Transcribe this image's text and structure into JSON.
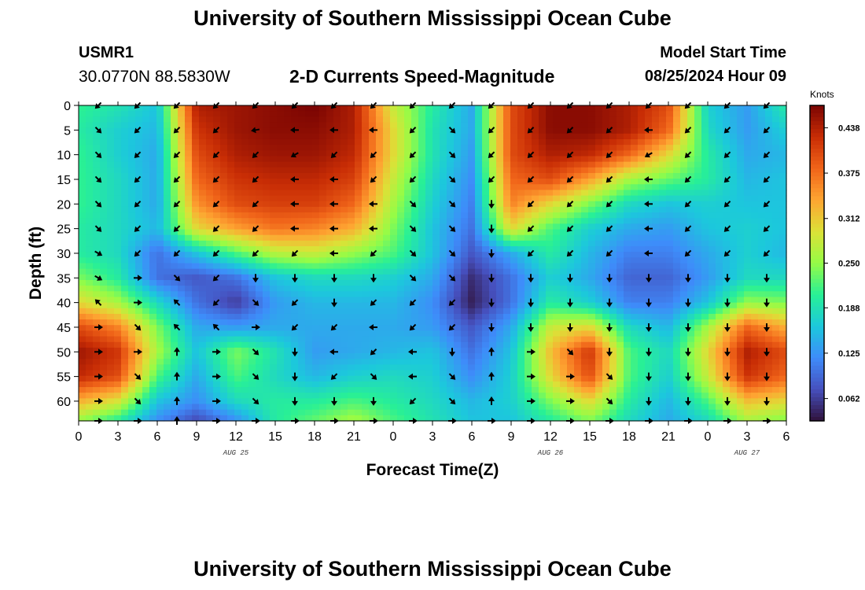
{
  "header": {
    "title": "University of Southern Mississippi Ocean Cube",
    "station": "USMR1",
    "coords": "30.0770N  88.5830W",
    "plot_title": "2-D Currents Speed-Magnitude",
    "model_label": "Model Start Time",
    "model_time": "08/25/2024 Hour 09"
  },
  "footer": {
    "title": "University of Southern Mississippi Ocean Cube"
  },
  "colors": {
    "background": "#ffffff",
    "axis": "#000000",
    "arrow": "#000000"
  },
  "chart_data": {
    "type": "heatmap",
    "title": "2-D Currents Speed-Magnitude",
    "xlabel": "Forecast Time(Z)",
    "ylabel": "Depth (ft)",
    "xlim": [
      0,
      54
    ],
    "ylim": [
      0,
      64
    ],
    "x_ticks": [
      0,
      3,
      6,
      9,
      12,
      15,
      18,
      21,
      24,
      27,
      30,
      33,
      36,
      39,
      42,
      45,
      48,
      51,
      54
    ],
    "x_tick_labels": [
      "0",
      "3",
      "6",
      "9",
      "12",
      "15",
      "18",
      "21",
      "0",
      "3",
      "6",
      "9",
      "12",
      "15",
      "18",
      "21",
      "0",
      "3",
      "6"
    ],
    "y_ticks": [
      0,
      5,
      10,
      15,
      20,
      25,
      30,
      35,
      40,
      45,
      50,
      55,
      60
    ],
    "y_tick_labels": [
      "0",
      "5",
      "10",
      "15",
      "20",
      "25",
      "30",
      "35",
      "40",
      "45",
      "50",
      "55",
      "60"
    ],
    "date_labels": [
      {
        "x": 12,
        "label": "AUG 25"
      },
      {
        "x": 36,
        "label": "AUG 26"
      },
      {
        "x": 51,
        "label": "AUG 27"
      }
    ],
    "colorbar": {
      "label": "Knots",
      "min": 0.031,
      "max": 0.469,
      "ticks": [
        0.062,
        0.125,
        0.188,
        0.25,
        0.312,
        0.375,
        0.438
      ],
      "tick_labels": [
        "0.062",
        "0.125",
        "0.188",
        "0.250",
        "0.312",
        "0.375",
        "0.438"
      ]
    },
    "speed_field": {
      "x": [
        0,
        3,
        6,
        9,
        12,
        15,
        18,
        21,
        24,
        27,
        30,
        33,
        36,
        39,
        42,
        45,
        48,
        51,
        54
      ],
      "depth": [
        0,
        5,
        10,
        15,
        20,
        25,
        30,
        35,
        40,
        45,
        50,
        55,
        60,
        64
      ],
      "values": [
        [
          0.21,
          0.19,
          0.16,
          0.44,
          0.45,
          0.46,
          0.47,
          0.44,
          0.28,
          0.2,
          0.14,
          0.4,
          0.46,
          0.46,
          0.44,
          0.4,
          0.17,
          0.13,
          0.2
        ],
        [
          0.2,
          0.17,
          0.15,
          0.42,
          0.45,
          0.46,
          0.46,
          0.44,
          0.3,
          0.19,
          0.14,
          0.4,
          0.46,
          0.46,
          0.44,
          0.38,
          0.18,
          0.13,
          0.17
        ],
        [
          0.21,
          0.17,
          0.14,
          0.4,
          0.44,
          0.45,
          0.45,
          0.43,
          0.3,
          0.19,
          0.13,
          0.4,
          0.44,
          0.43,
          0.38,
          0.3,
          0.2,
          0.14,
          0.15
        ],
        [
          0.21,
          0.18,
          0.14,
          0.38,
          0.42,
          0.43,
          0.43,
          0.41,
          0.28,
          0.18,
          0.12,
          0.38,
          0.4,
          0.34,
          0.26,
          0.23,
          0.2,
          0.15,
          0.16
        ],
        [
          0.21,
          0.18,
          0.14,
          0.35,
          0.4,
          0.41,
          0.41,
          0.38,
          0.26,
          0.17,
          0.11,
          0.36,
          0.3,
          0.24,
          0.18,
          0.16,
          0.17,
          0.16,
          0.16
        ],
        [
          0.2,
          0.18,
          0.15,
          0.3,
          0.34,
          0.37,
          0.36,
          0.33,
          0.24,
          0.16,
          0.1,
          0.3,
          0.22,
          0.17,
          0.14,
          0.13,
          0.16,
          0.17,
          0.16
        ],
        [
          0.2,
          0.18,
          0.1,
          0.16,
          0.22,
          0.27,
          0.28,
          0.25,
          0.22,
          0.16,
          0.08,
          0.14,
          0.2,
          0.15,
          0.11,
          0.11,
          0.14,
          0.17,
          0.15
        ],
        [
          0.24,
          0.2,
          0.1,
          0.08,
          0.1,
          0.16,
          0.18,
          0.18,
          0.17,
          0.14,
          0.05,
          0.1,
          0.17,
          0.14,
          0.09,
          0.09,
          0.13,
          0.18,
          0.18
        ],
        [
          0.3,
          0.26,
          0.18,
          0.1,
          0.06,
          0.13,
          0.15,
          0.15,
          0.15,
          0.12,
          0.04,
          0.1,
          0.2,
          0.17,
          0.11,
          0.11,
          0.16,
          0.25,
          0.24
        ],
        [
          0.4,
          0.36,
          0.24,
          0.14,
          0.13,
          0.14,
          0.14,
          0.14,
          0.14,
          0.13,
          0.08,
          0.14,
          0.28,
          0.3,
          0.18,
          0.15,
          0.26,
          0.38,
          0.33
        ],
        [
          0.45,
          0.42,
          0.26,
          0.16,
          0.24,
          0.19,
          0.13,
          0.14,
          0.15,
          0.16,
          0.1,
          0.16,
          0.32,
          0.42,
          0.22,
          0.18,
          0.3,
          0.44,
          0.4
        ],
        [
          0.43,
          0.4,
          0.22,
          0.14,
          0.22,
          0.18,
          0.15,
          0.17,
          0.18,
          0.17,
          0.12,
          0.17,
          0.3,
          0.4,
          0.22,
          0.17,
          0.28,
          0.42,
          0.38
        ],
        [
          0.33,
          0.29,
          0.16,
          0.12,
          0.18,
          0.2,
          0.2,
          0.22,
          0.2,
          0.18,
          0.15,
          0.17,
          0.24,
          0.3,
          0.2,
          0.15,
          0.22,
          0.32,
          0.3
        ],
        [
          0.25,
          0.2,
          0.12,
          0.07,
          0.12,
          0.2,
          0.23,
          0.26,
          0.22,
          0.19,
          0.16,
          0.16,
          0.2,
          0.24,
          0.18,
          0.14,
          0.18,
          0.26,
          0.24
        ]
      ]
    },
    "arrows": {
      "x": [
        1.5,
        4.5,
        7.5,
        10.5,
        13.5,
        16.5,
        19.5,
        22.5,
        25.5,
        28.5,
        31.5,
        34.5,
        37.5,
        40.5,
        43.5,
        46.5,
        49.5,
        52.5
      ],
      "depth": [
        0,
        5,
        10,
        15,
        20,
        25,
        30,
        35,
        40,
        45,
        50,
        55,
        60,
        64
      ],
      "note": "arrow direction in degrees, screen-style (0 = right, 90 = down)",
      "angles": [
        [
          135,
          135,
          135,
          135,
          135,
          135,
          135,
          135,
          135,
          135,
          135,
          135,
          135,
          135,
          135,
          135,
          135,
          135
        ],
        [
          45,
          135,
          135,
          135,
          170,
          180,
          180,
          180,
          135,
          45,
          135,
          135,
          135,
          135,
          180,
          135,
          135,
          135
        ],
        [
          45,
          135,
          135,
          135,
          135,
          150,
          135,
          135,
          135,
          45,
          135,
          135,
          135,
          135,
          150,
          135,
          135,
          135
        ],
        [
          45,
          135,
          135,
          135,
          135,
          180,
          180,
          135,
          135,
          45,
          135,
          135,
          135,
          135,
          180,
          135,
          135,
          135
        ],
        [
          45,
          135,
          135,
          135,
          135,
          180,
          180,
          180,
          45,
          45,
          90,
          135,
          135,
          135,
          180,
          135,
          135,
          135
        ],
        [
          45,
          135,
          135,
          135,
          135,
          180,
          180,
          180,
          45,
          45,
          90,
          135,
          135,
          135,
          180,
          135,
          135,
          135
        ],
        [
          30,
          135,
          135,
          135,
          135,
          135,
          180,
          135,
          45,
          45,
          90,
          135,
          135,
          135,
          180,
          135,
          135,
          135
        ],
        [
          30,
          0,
          45,
          135,
          90,
          90,
          90,
          90,
          45,
          45,
          90,
          90,
          90,
          90,
          90,
          90,
          90,
          90
        ],
        [
          225,
          0,
          225,
          135,
          45,
          135,
          90,
          135,
          135,
          135,
          90,
          90,
          90,
          90,
          90,
          90,
          90,
          90
        ],
        [
          0,
          45,
          225,
          225,
          0,
          135,
          135,
          180,
          135,
          135,
          90,
          90,
          90,
          90,
          90,
          90,
          90,
          90
        ],
        [
          0,
          0,
          270,
          0,
          45,
          90,
          180,
          135,
          180,
          90,
          270,
          0,
          45,
          90,
          90,
          90,
          90,
          90
        ],
        [
          0,
          45,
          270,
          0,
          45,
          90,
          135,
          45,
          180,
          45,
          270,
          0,
          0,
          45,
          90,
          90,
          90,
          90
        ],
        [
          0,
          45,
          270,
          0,
          45,
          90,
          90,
          90,
          135,
          45,
          270,
          0,
          0,
          45,
          90,
          90,
          90,
          90
        ],
        [
          0,
          0,
          270,
          0,
          0,
          0,
          0,
          0,
          0,
          0,
          0,
          0,
          0,
          0,
          0,
          0,
          0,
          0
        ]
      ]
    }
  }
}
